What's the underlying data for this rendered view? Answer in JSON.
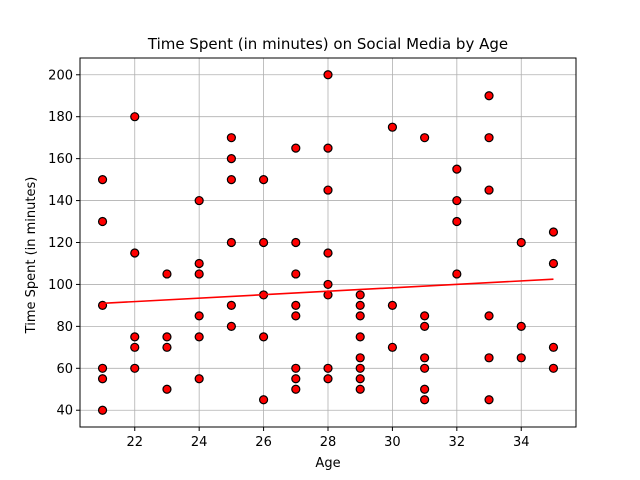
{
  "chart_data": {
    "type": "scatter",
    "title": "Time Spent (in minutes) on Social Media by Age",
    "xlabel": "Age",
    "ylabel": "Time Spent (in minutes)",
    "xlim": [
      20.3,
      35.7
    ],
    "ylim": [
      32,
      208
    ],
    "xticks": [
      22,
      24,
      26,
      28,
      30,
      32,
      34
    ],
    "yticks": [
      40,
      60,
      80,
      100,
      120,
      140,
      160,
      180,
      200
    ],
    "grid": true,
    "marker_color": "#ff0000",
    "marker_edge_color": "#000000",
    "line_color": "#ff0000",
    "trendline": {
      "x": [
        21,
        35
      ],
      "y": [
        91,
        102.5
      ]
    },
    "points": [
      [
        21,
        150
      ],
      [
        21,
        130
      ],
      [
        21,
        90
      ],
      [
        21,
        60
      ],
      [
        21,
        55
      ],
      [
        21,
        40
      ],
      [
        22,
        180
      ],
      [
        22,
        115
      ],
      [
        22,
        75
      ],
      [
        22,
        70
      ],
      [
        22,
        60
      ],
      [
        23,
        105
      ],
      [
        23,
        75
      ],
      [
        23,
        70
      ],
      [
        23,
        50
      ],
      [
        24,
        140
      ],
      [
        24,
        110
      ],
      [
        24,
        105
      ],
      [
        24,
        85
      ],
      [
        24,
        75
      ],
      [
        24,
        55
      ],
      [
        25,
        170
      ],
      [
        25,
        160
      ],
      [
        25,
        150
      ],
      [
        25,
        120
      ],
      [
        25,
        90
      ],
      [
        25,
        80
      ],
      [
        26,
        150
      ],
      [
        26,
        120
      ],
      [
        26,
        95
      ],
      [
        26,
        75
      ],
      [
        26,
        45
      ],
      [
        27,
        165
      ],
      [
        27,
        120
      ],
      [
        27,
        105
      ],
      [
        27,
        90
      ],
      [
        27,
        85
      ],
      [
        27,
        60
      ],
      [
        27,
        55
      ],
      [
        27,
        50
      ],
      [
        28,
        200
      ],
      [
        28,
        165
      ],
      [
        28,
        145
      ],
      [
        28,
        115
      ],
      [
        28,
        100
      ],
      [
        28,
        95
      ],
      [
        28,
        60
      ],
      [
        28,
        55
      ],
      [
        29,
        95
      ],
      [
        29,
        90
      ],
      [
        29,
        85
      ],
      [
        29,
        75
      ],
      [
        29,
        65
      ],
      [
        29,
        60
      ],
      [
        29,
        55
      ],
      [
        29,
        50
      ],
      [
        30,
        175
      ],
      [
        30,
        90
      ],
      [
        30,
        70
      ],
      [
        31,
        170
      ],
      [
        31,
        85
      ],
      [
        31,
        80
      ],
      [
        31,
        65
      ],
      [
        31,
        60
      ],
      [
        31,
        50
      ],
      [
        31,
        45
      ],
      [
        32,
        155
      ],
      [
        32,
        140
      ],
      [
        32,
        130
      ],
      [
        32,
        105
      ],
      [
        33,
        190
      ],
      [
        33,
        170
      ],
      [
        33,
        145
      ],
      [
        33,
        85
      ],
      [
        33,
        65
      ],
      [
        33,
        45
      ],
      [
        34,
        120
      ],
      [
        34,
        80
      ],
      [
        34,
        65
      ],
      [
        35,
        125
      ],
      [
        35,
        110
      ],
      [
        35,
        70
      ],
      [
        35,
        60
      ]
    ]
  }
}
